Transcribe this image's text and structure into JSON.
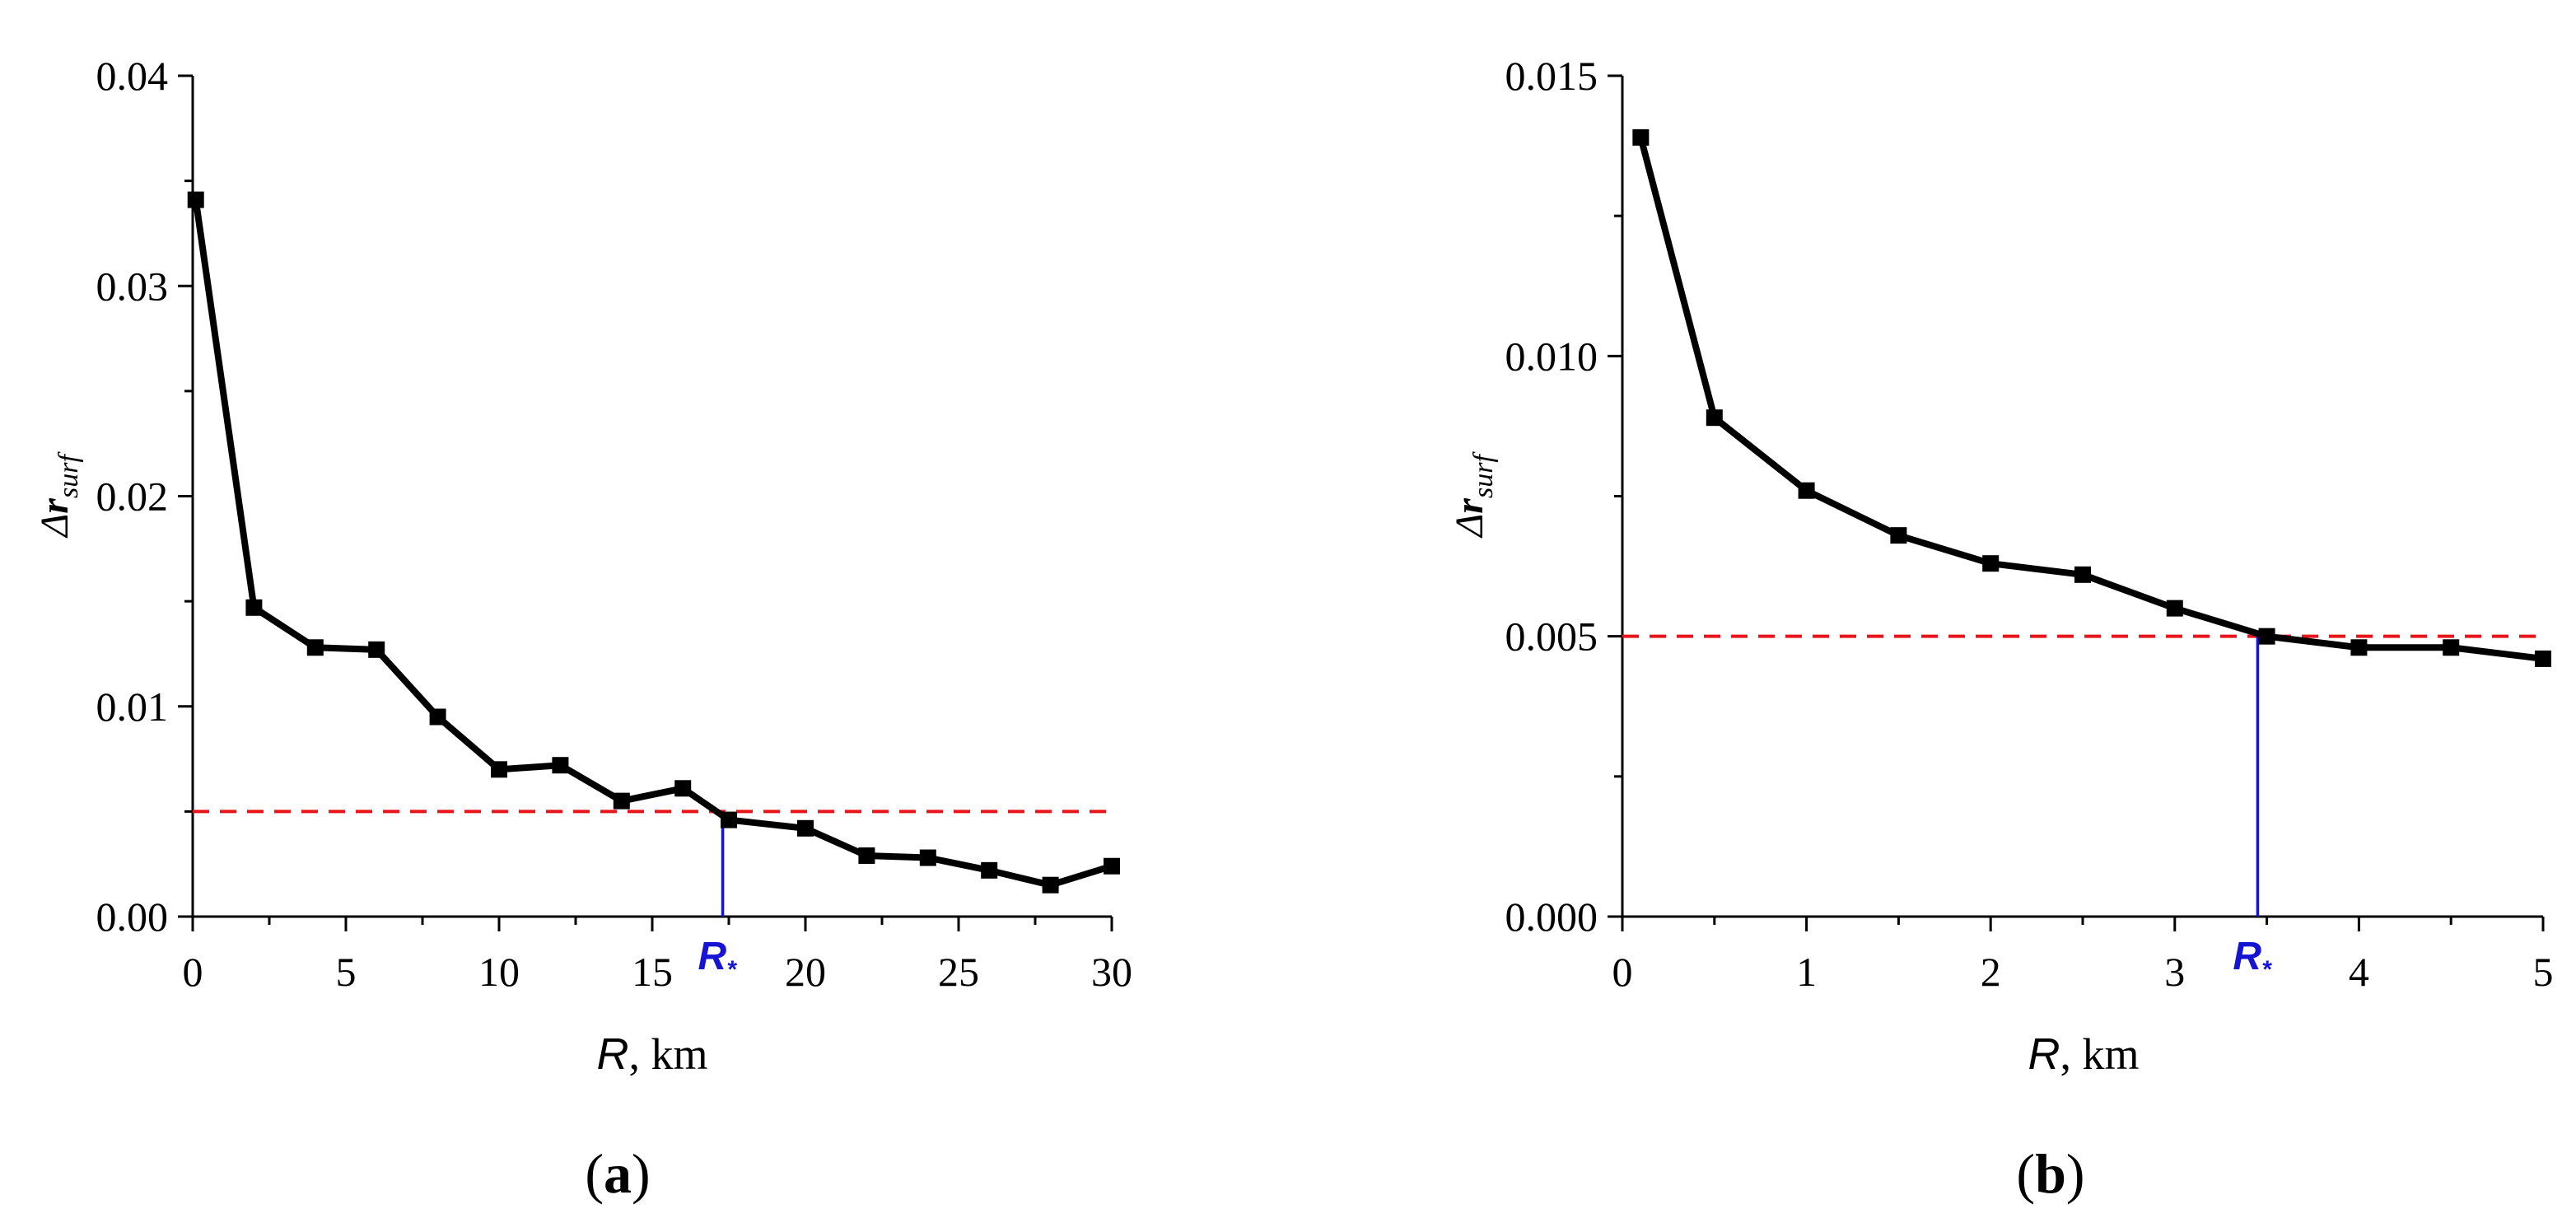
{
  "chart_data": [
    {
      "type": "line",
      "panel_label": "a",
      "x": [
        0.1,
        2,
        4,
        6,
        8,
        10,
        12,
        14,
        16,
        17.5,
        20,
        22,
        24,
        26,
        28,
        30
      ],
      "series": [
        {
          "values": [
            0.0341,
            0.0147,
            0.0128,
            0.0127,
            0.0095,
            0.007,
            0.0072,
            0.0055,
            0.0061,
            0.0046,
            0.0042,
            0.0029,
            0.0028,
            0.0022,
            0.0015,
            0.0024
          ]
        }
      ],
      "xlabel": {
        "var": "R",
        "unit": ", km"
      },
      "ylabel": {
        "prefix": "Δ",
        "var": "r",
        "sub": "surf"
      },
      "xlim": [
        0,
        30
      ],
      "ylim": [
        0,
        0.04
      ],
      "x_ticks": [
        0,
        5,
        10,
        15,
        20,
        25,
        30
      ],
      "x_tick_labels": [
        "0",
        "5",
        "10",
        "15",
        "20",
        "25",
        "30"
      ],
      "y_ticks": [
        0,
        0.01,
        0.02,
        0.03,
        0.04
      ],
      "y_tick_labels": [
        "0.00",
        "0.01",
        "0.02",
        "0.03",
        "0.04"
      ],
      "threshold": 0.005,
      "r_star": 17.3,
      "r_star_label": {
        "main": "R",
        "sub": "*"
      },
      "grid": false
    },
    {
      "type": "line",
      "panel_label": "b",
      "x": [
        0.1,
        0.5,
        1.0,
        1.5,
        2.0,
        2.5,
        3.0,
        3.5,
        4.0,
        4.5,
        5.0
      ],
      "series": [
        {
          "values": [
            0.0139,
            0.0089,
            0.0076,
            0.0068,
            0.0063,
            0.0061,
            0.0055,
            0.005,
            0.0048,
            0.0048,
            0.0046
          ]
        }
      ],
      "xlabel": {
        "var": "R",
        "unit": ", km"
      },
      "ylabel": {
        "prefix": "Δ",
        "var": "r",
        "sub": "surf"
      },
      "xlim": [
        0,
        5
      ],
      "ylim": [
        0,
        0.015
      ],
      "x_ticks": [
        0,
        1,
        2,
        3,
        4,
        5
      ],
      "x_tick_labels": [
        "0",
        "1",
        "2",
        "3",
        "4",
        "5"
      ],
      "y_ticks": [
        0,
        0.005,
        0.01,
        0.015
      ],
      "y_tick_labels": [
        "0.000",
        "0.005",
        "0.010",
        "0.015"
      ],
      "threshold": 0.005,
      "r_star": 3.45,
      "r_star_label": {
        "main": "R",
        "sub": "*"
      },
      "grid": false
    }
  ]
}
